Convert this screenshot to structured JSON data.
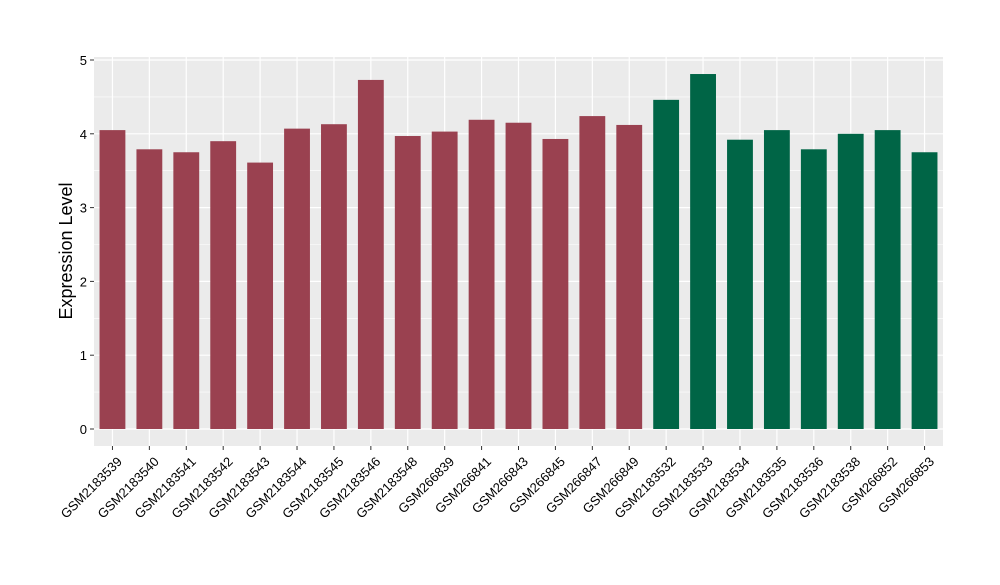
{
  "chart_data": {
    "type": "bar",
    "title": "",
    "xlabel": "",
    "ylabel": "Expression Level",
    "ylim": [
      0,
      5
    ],
    "yticks": [
      0,
      1,
      2,
      3,
      4,
      5
    ],
    "grid": true,
    "legend": "none",
    "categories": [
      "GSM2183539",
      "GSM2183540",
      "GSM2183541",
      "GSM2183542",
      "GSM2183543",
      "GSM2183544",
      "GSM2183545",
      "GSM2183546",
      "GSM2183548",
      "GSM266839",
      "GSM266841",
      "GSM266843",
      "GSM266845",
      "GSM266847",
      "GSM266849",
      "GSM2183532",
      "GSM2183533",
      "GSM2183534",
      "GSM2183535",
      "GSM2183536",
      "GSM2183538",
      "GSM266852",
      "GSM266853"
    ],
    "values": [
      4.05,
      3.79,
      3.75,
      3.9,
      3.61,
      4.07,
      4.13,
      4.73,
      3.97,
      4.03,
      4.19,
      4.15,
      3.93,
      4.24,
      4.12,
      4.46,
      4.81,
      3.92,
      4.05,
      3.79,
      4.0,
      4.05,
      3.75
    ],
    "bar_colors": [
      "#9a4150",
      "#9a4150",
      "#9a4150",
      "#9a4150",
      "#9a4150",
      "#9a4150",
      "#9a4150",
      "#9a4150",
      "#9a4150",
      "#9a4150",
      "#9a4150",
      "#9a4150",
      "#9a4150",
      "#9a4150",
      "#9a4150",
      "#006546",
      "#006546",
      "#006546",
      "#006546",
      "#006546",
      "#006546",
      "#006546",
      "#006546"
    ],
    "panel_background": "#ebebeb",
    "gridline_color": "#ffffff"
  }
}
